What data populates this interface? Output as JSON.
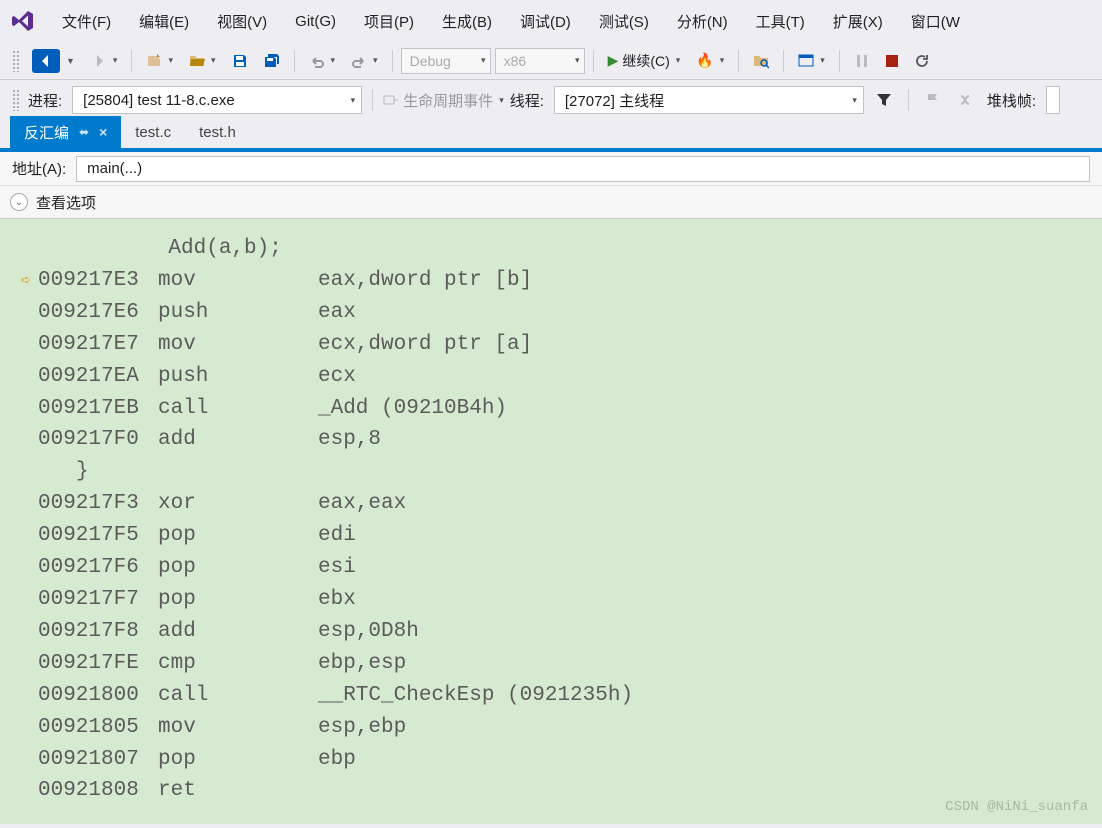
{
  "menubar": {
    "items": [
      "文件(F)",
      "编辑(E)",
      "视图(V)",
      "Git(G)",
      "项目(P)",
      "生成(B)",
      "调试(D)",
      "测试(S)",
      "分析(N)",
      "工具(T)",
      "扩展(X)",
      "窗口(W"
    ]
  },
  "toolbar": {
    "config": "Debug",
    "platform": "x86",
    "continue_label": "继续(C)"
  },
  "debugbar": {
    "process_label": "进程:",
    "process_value": "[25804] test 11-8.c.exe",
    "lifecycle_label": "生命周期事件",
    "thread_label": "线程:",
    "thread_value": "[27072] 主线程",
    "stackframe_label": "堆栈帧:"
  },
  "tabs": {
    "active": "反汇编",
    "others": [
      "test.c",
      "test.h"
    ]
  },
  "addr": {
    "label": "地址(A):",
    "value": "main(...)"
  },
  "options": {
    "label": "查看选项"
  },
  "disasm": {
    "source1": "    Add(a,b);",
    "lines": [
      {
        "bp": true,
        "addr": "009217E3",
        "mnem": "mov",
        "oper": "eax,dword ptr [b]"
      },
      {
        "bp": false,
        "addr": "009217E6",
        "mnem": "push",
        "oper": "eax"
      },
      {
        "bp": false,
        "addr": "009217E7",
        "mnem": "mov",
        "oper": "ecx,dword ptr [a]"
      },
      {
        "bp": false,
        "addr": "009217EA",
        "mnem": "push",
        "oper": "ecx"
      },
      {
        "bp": false,
        "addr": "009217EB",
        "mnem": "call",
        "oper": "_Add (09210B4h)"
      },
      {
        "bp": false,
        "addr": "009217F0",
        "mnem": "add",
        "oper": "esp,8"
      }
    ],
    "source2": "}",
    "lines2": [
      {
        "addr": "009217F3",
        "mnem": "xor",
        "oper": "eax,eax"
      },
      {
        "addr": "009217F5",
        "mnem": "pop",
        "oper": "edi"
      },
      {
        "addr": "009217F6",
        "mnem": "pop",
        "oper": "esi"
      },
      {
        "addr": "009217F7",
        "mnem": "pop",
        "oper": "ebx"
      },
      {
        "addr": "009217F8",
        "mnem": "add",
        "oper": "esp,0D8h"
      },
      {
        "addr": "009217FE",
        "mnem": "cmp",
        "oper": "ebp,esp"
      },
      {
        "addr": "00921800",
        "mnem": "call",
        "oper": "__RTC_CheckEsp (0921235h)"
      },
      {
        "addr": "00921805",
        "mnem": "mov",
        "oper": "esp,ebp"
      },
      {
        "addr": "00921807",
        "mnem": "pop",
        "oper": "ebp"
      },
      {
        "addr": "00921808",
        "mnem": "ret",
        "oper": ""
      }
    ]
  },
  "watermark": "CSDN @NiNi_suanfa",
  "colors": {
    "accent": "#007acc",
    "code_bg": "#d5ead0",
    "code_fg": "#5b5b5b"
  }
}
